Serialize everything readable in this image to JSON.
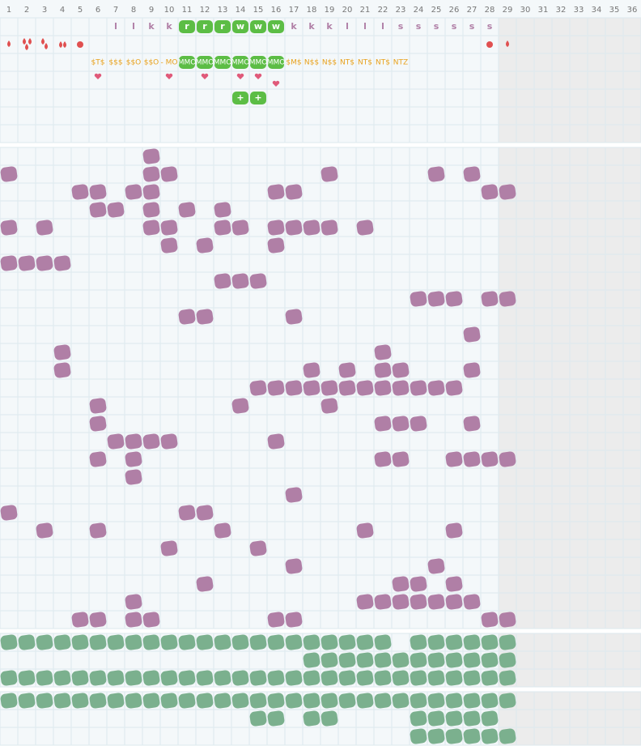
{
  "columns": [
    1,
    2,
    3,
    4,
    5,
    6,
    7,
    8,
    9,
    10,
    11,
    12,
    13,
    14,
    15,
    16,
    17,
    18,
    19,
    20,
    21,
    22,
    23,
    24,
    25,
    26,
    27,
    28,
    29,
    30,
    31,
    32,
    33,
    34,
    35,
    36
  ],
  "letters": [
    null,
    null,
    null,
    null,
    null,
    null,
    "l",
    "l",
    "k",
    "k",
    "r",
    "r",
    "r",
    "w",
    "w",
    "w",
    "k",
    "k",
    "k",
    "l",
    "l",
    "l",
    "s",
    "s",
    "s",
    "s",
    "s",
    "s"
  ],
  "codes": [
    null,
    null,
    null,
    null,
    null,
    "$T$",
    "$$$",
    "$$O",
    "$$O",
    "- MO",
    "MMO",
    "MMO",
    "MMO",
    "MMO",
    "MMO",
    "MMO",
    "$M$",
    "N$$",
    "N$$",
    "NT$",
    "NT$",
    "NT$",
    "NTZ"
  ],
  "plus": [
    null,
    null,
    null,
    null,
    null,
    null,
    null,
    null,
    null,
    null,
    null,
    null,
    null,
    "+",
    "+"
  ]
}
